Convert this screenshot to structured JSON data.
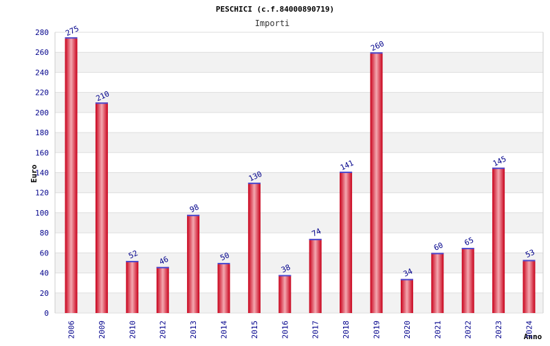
{
  "colors": {
    "bar_edge": "#c8001a",
    "bar_mid": "#f4a8b0",
    "bar_top": "#4a4ad0",
    "grid_band": "#f2f2f2",
    "grid_line": "#dddddd",
    "tick_text": "#00008b"
  },
  "chart_data": {
    "type": "bar",
    "title": "PESCHICI (c.f.84000890719)",
    "subtitle": "Importi",
    "ylabel": "Euro",
    "xlabel": "Anno",
    "ylim": [
      0,
      280
    ],
    "ytick_step": 20,
    "grid": true,
    "categories": [
      "2006",
      "2009",
      "2010",
      "2012",
      "2013",
      "2014",
      "2015",
      "2016",
      "2017",
      "2018",
      "2019",
      "2020",
      "2021",
      "2022",
      "2023",
      "2024"
    ],
    "values": [
      275,
      210,
      52,
      46,
      98,
      50,
      130,
      38,
      74,
      141,
      260,
      34,
      60,
      65,
      145,
      53
    ]
  }
}
